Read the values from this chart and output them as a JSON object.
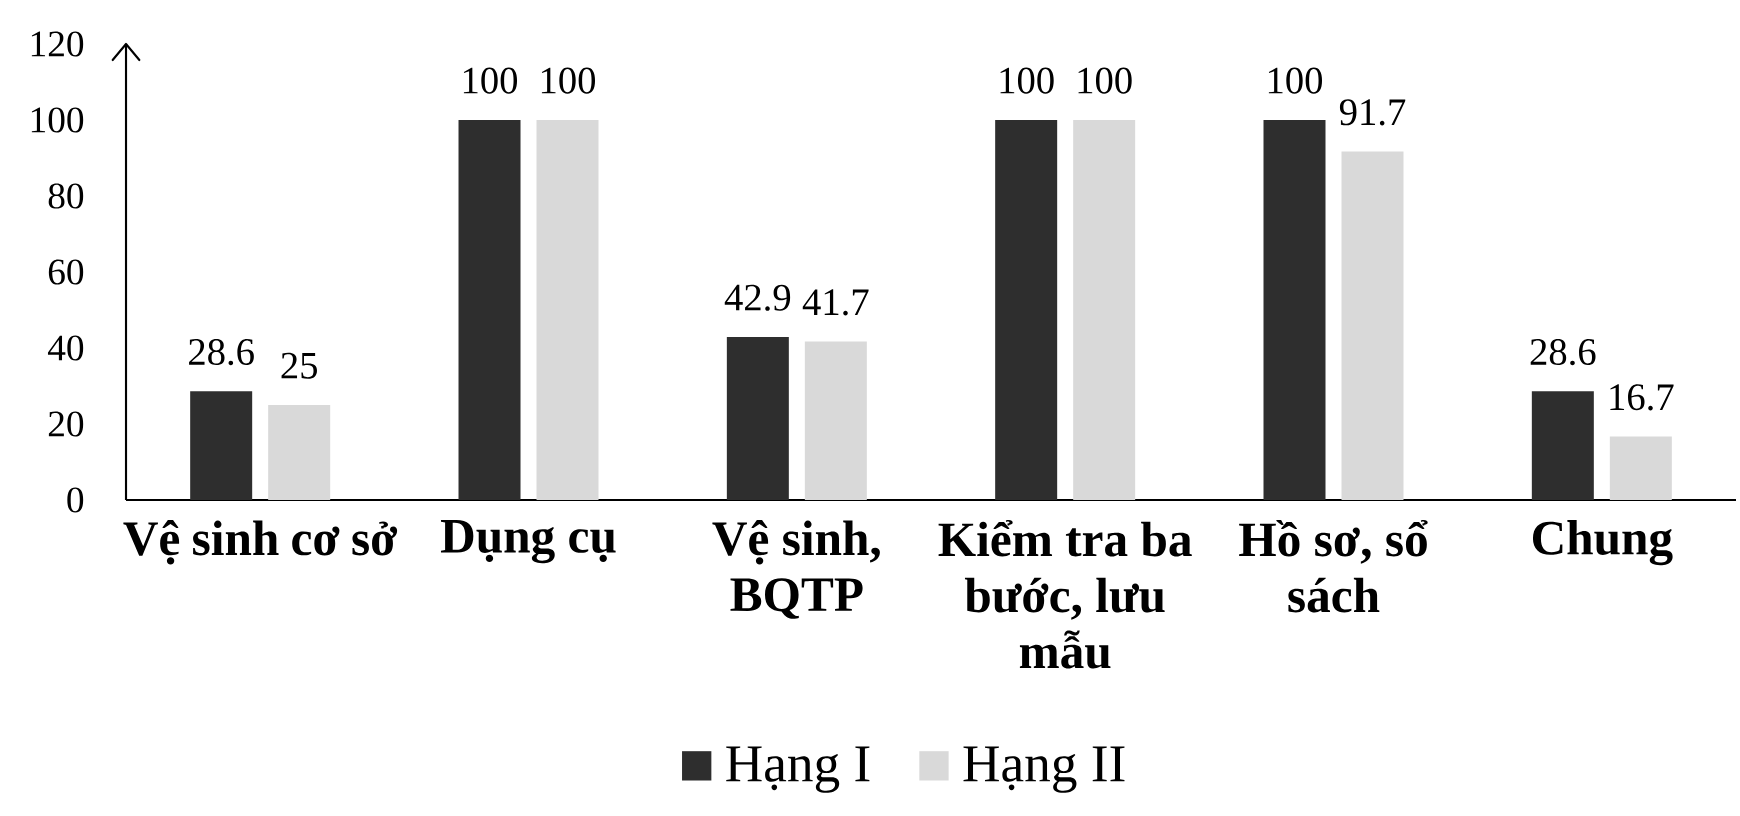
{
  "chart_data": {
    "type": "bar",
    "categories": [
      "Vệ sinh cơ sở",
      "Dụng cụ",
      "Vệ sinh, BQTP",
      "Kiểm tra ba bước, lưu mẫu",
      "Hồ sơ, sổ sách",
      "Chung"
    ],
    "series": [
      {
        "name": "Hạng I",
        "color": "#2e2e2e",
        "values": [
          28.6,
          100,
          42.9,
          100,
          100,
          28.6
        ]
      },
      {
        "name": "Hạng II",
        "color": "#d9d9d9",
        "values": [
          25,
          100,
          41.7,
          100,
          91.7,
          16.7
        ]
      }
    ],
    "ylim": [
      0,
      120
    ],
    "yticks": [
      0,
      20,
      40,
      60,
      80,
      100,
      120
    ],
    "data_labels": true,
    "legend": "bottom"
  }
}
